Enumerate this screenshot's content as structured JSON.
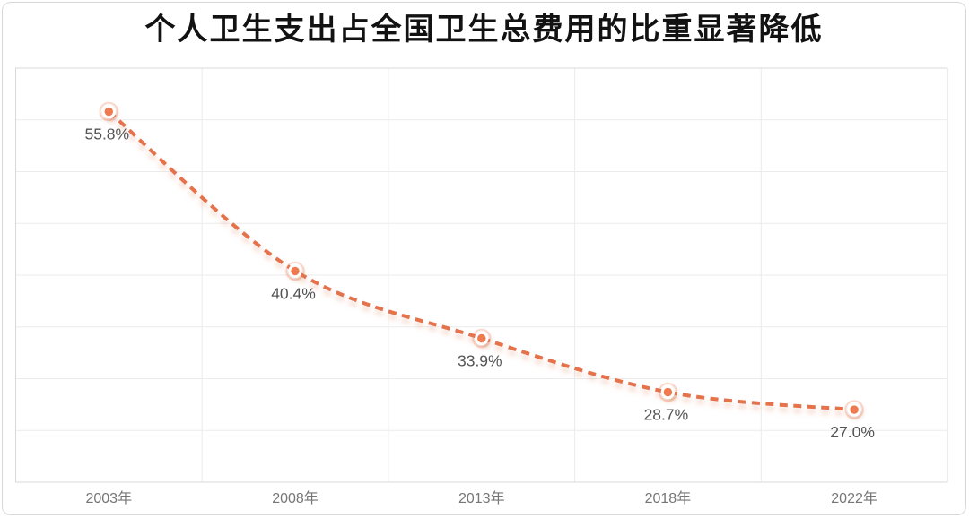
{
  "card": {
    "background": "#ffffff",
    "border_color": "#d8d8d8"
  },
  "chart_data": {
    "type": "line",
    "title": "个人卫生支出占全国卫生总费用的比重显著降低",
    "categories": [
      "2003年",
      "2008年",
      "2013年",
      "2018年",
      "2022年"
    ],
    "values": [
      55.8,
      40.4,
      33.9,
      28.7,
      27.0
    ],
    "point_labels": [
      "55.8%",
      "40.4%",
      "33.9%",
      "28.7%",
      "27.0%"
    ],
    "xlabel": "",
    "ylabel": "",
    "ylim": [
      20,
      60
    ],
    "y_gridline_step": 5,
    "grid": true,
    "legend": "none",
    "line_style": "dashed",
    "style": {
      "line_color": "#e4724c",
      "line_shadow_color": "#e8a285",
      "marker_fill": "#ef7a50",
      "marker_ring": "#ffffff",
      "marker_glow": "rgba(239,122,80,0.28)",
      "grid_color": "#ebebeb",
      "plot_border_color": "#d9d9d9",
      "point_label_color": "#545454",
      "axis_label_color": "#767676",
      "title_color": "#121212"
    }
  }
}
